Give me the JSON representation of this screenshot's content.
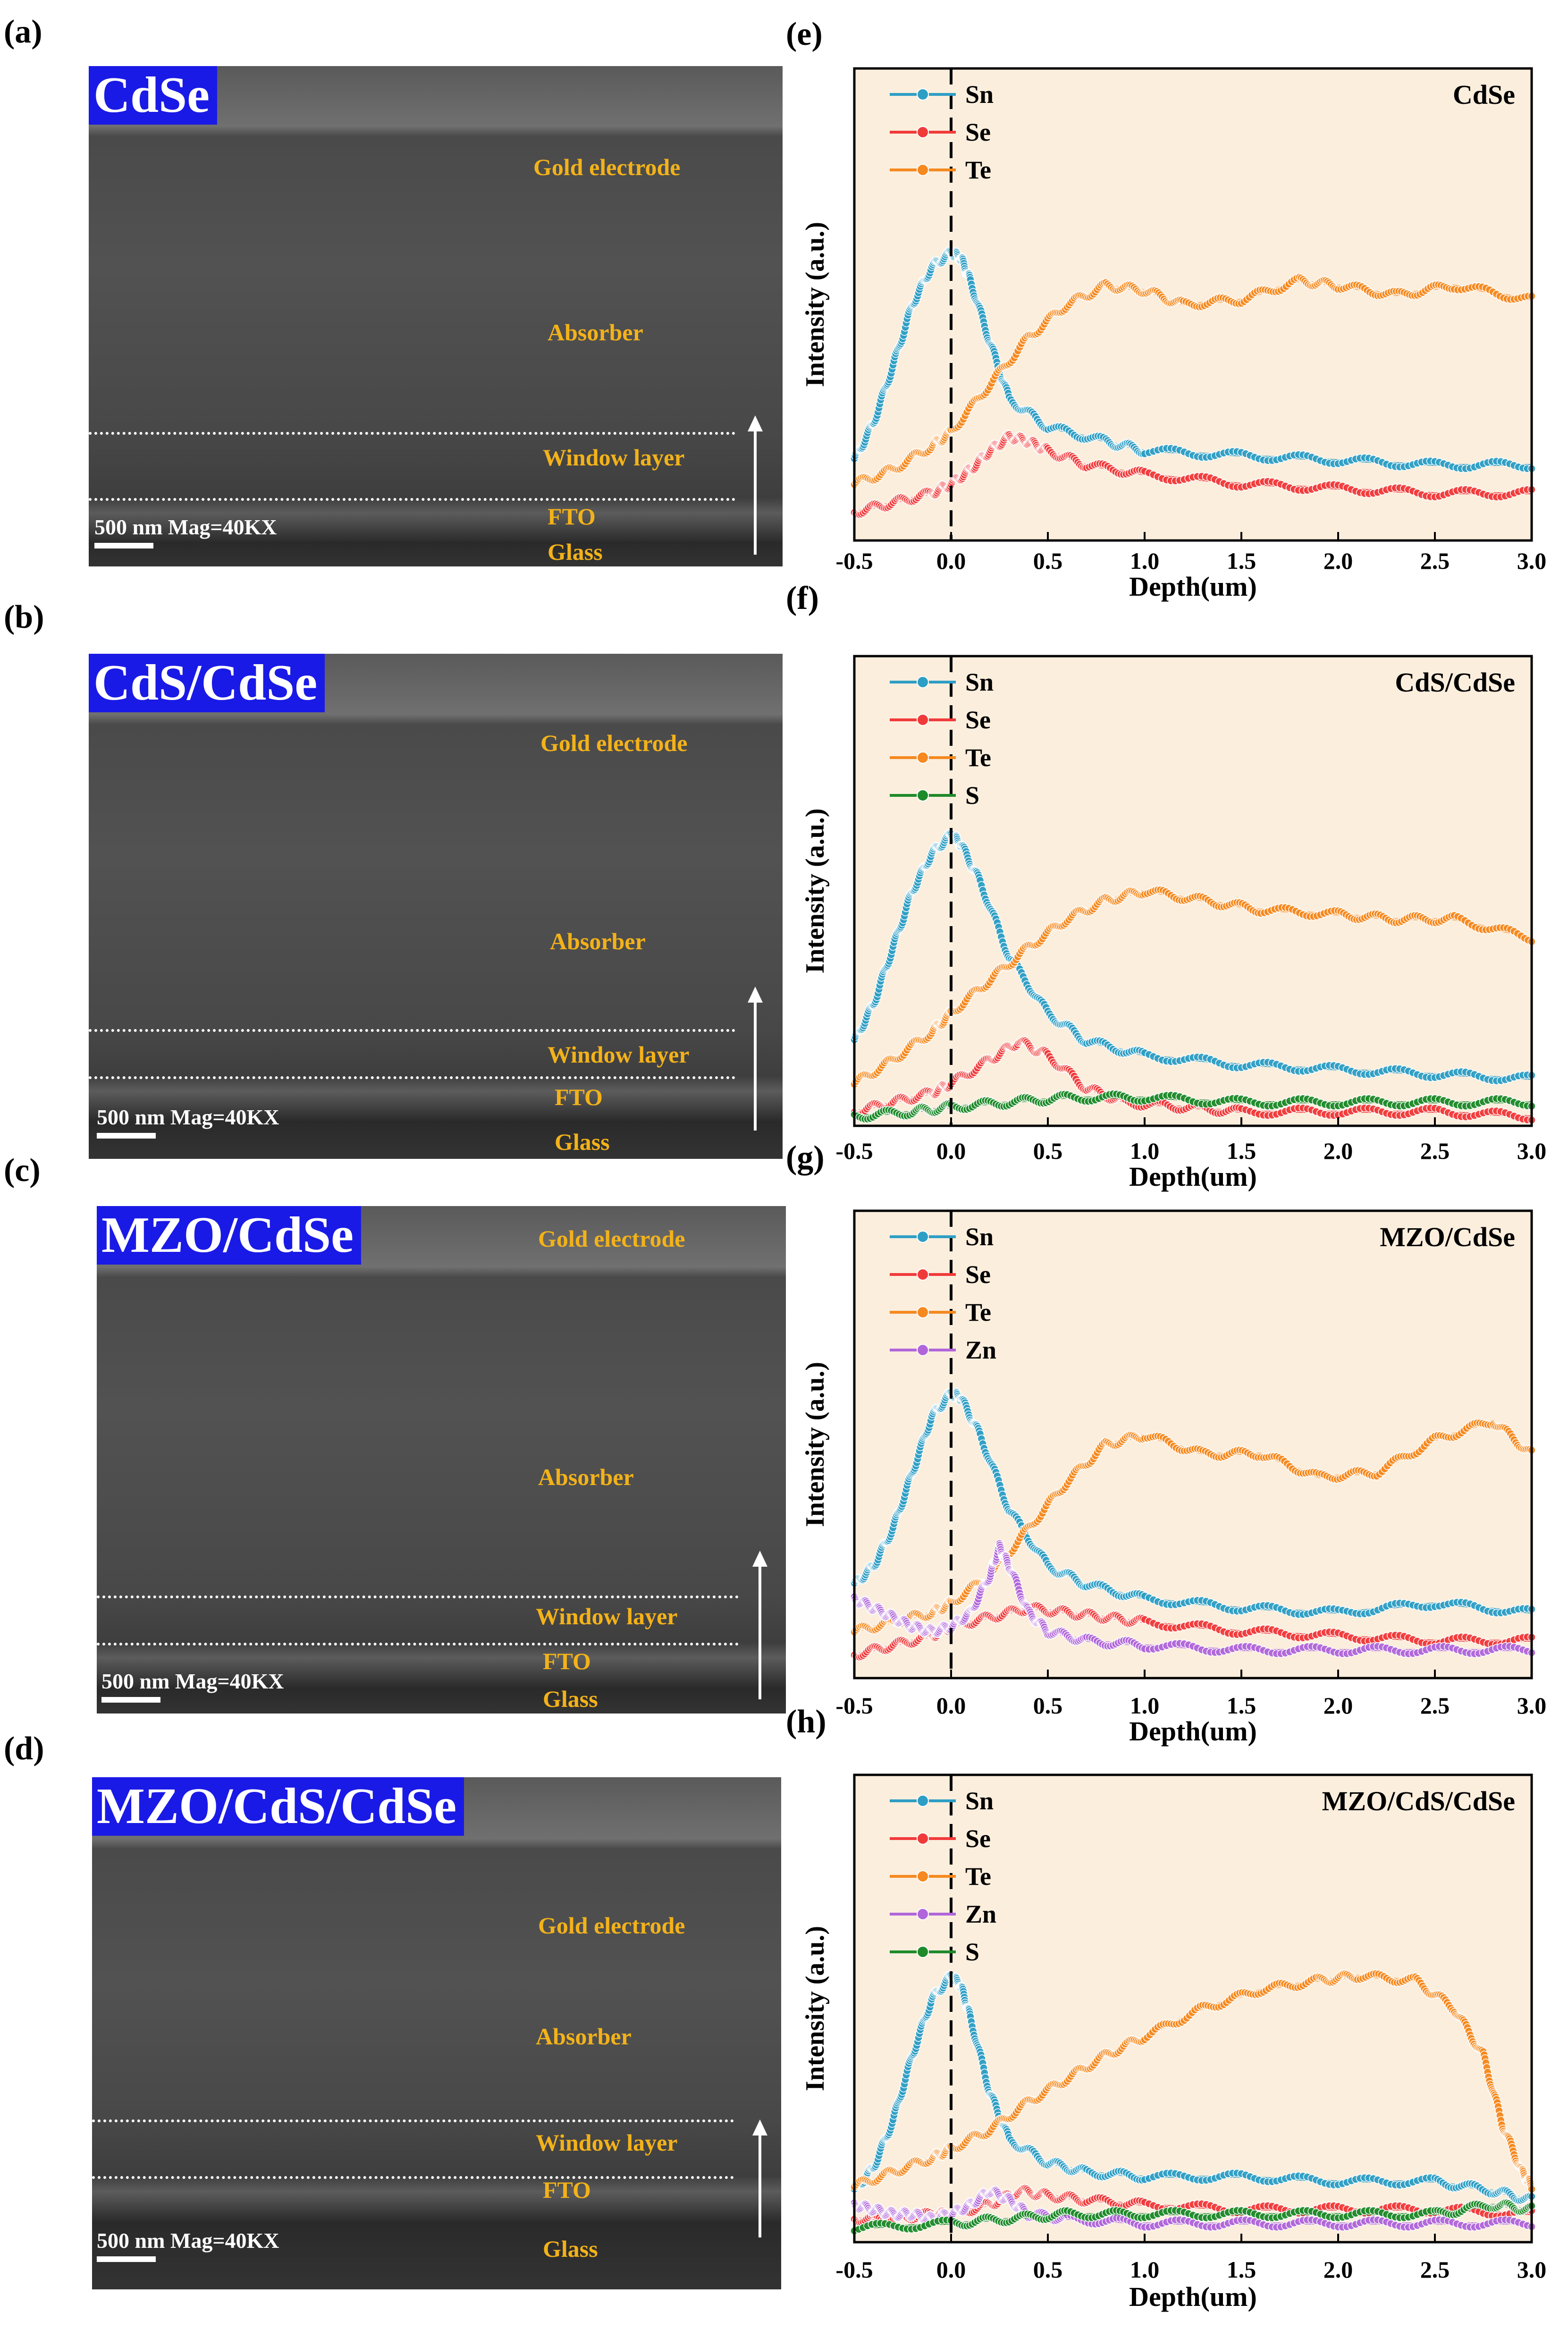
{
  "sem_panels": [
    {
      "letter": "(a)",
      "title": "CdSe",
      "layers": {
        "gold": "Gold electrode",
        "absorber": "Absorber",
        "window": "Window  layer",
        "fto": "FTO",
        "glass": "Glass"
      },
      "scale_text": "500 nm   Mag=40KX"
    },
    {
      "letter": "(b)",
      "title": "CdS/CdSe",
      "layers": {
        "gold": "Gold electrode",
        "absorber": "Absorber",
        "window": "Window  layer",
        "fto": "FTO",
        "glass": "Glass"
      },
      "scale_text": "500 nm  Mag=40KX"
    },
    {
      "letter": "(c)",
      "title": "MZO/CdSe",
      "layers": {
        "gold": "Gold electrode",
        "absorber": "Absorber",
        "window": "Window  layer",
        "fto": "FTO",
        "glass": "Glass"
      },
      "scale_text": "500 nm  Mag=40KX"
    },
    {
      "letter": "(d)",
      "title": "MZO/CdS/CdSe",
      "layers": {
        "gold": "Gold electrode",
        "absorber": "Absorber",
        "window": "Window  layer",
        "fto": "FTO",
        "glass": "Glass"
      },
      "scale_text": "500 nm  Mag=40KX"
    }
  ],
  "colors": {
    "Sn": "#2e9ec4",
    "Se": "#f03a3a",
    "Te": "#f5891f",
    "Zn": "#b066d9",
    "S": "#1f8a2a",
    "plot_bg": "#fbeedd"
  },
  "chart_data": [
    {
      "type": "scatter",
      "letter": "(e)",
      "title": "CdSe",
      "xlabel": "Depth(um)",
      "ylabel": "Intensity (a.u.)",
      "xlim": [
        -0.5,
        3.0
      ],
      "ylim": [
        0,
        100
      ],
      "xticks": [
        -0.5,
        0.0,
        0.5,
        1.0,
        1.5,
        2.0,
        2.5,
        3.0
      ],
      "xtick_labels": [
        "-0.5",
        "0.0",
        "0.5",
        "1.0",
        "1.5",
        "2.0",
        "2.5",
        "3.0"
      ],
      "vline_x": 0.0,
      "legend": [
        "Sn",
        "Se",
        "Te"
      ],
      "series": [
        {
          "name": "Sn",
          "x": [
            -0.5,
            -0.4,
            -0.3,
            -0.2,
            -0.1,
            0.0,
            0.05,
            0.1,
            0.2,
            0.3,
            0.5,
            0.8,
            1.0,
            1.5,
            2.0,
            2.5,
            3.0
          ],
          "y": [
            17,
            25,
            37,
            50,
            58,
            61,
            60,
            55,
            42,
            30,
            24,
            21,
            19,
            18,
            17,
            16,
            16
          ]
        },
        {
          "name": "Se",
          "x": [
            -0.5,
            -0.3,
            -0.1,
            0.0,
            0.1,
            0.2,
            0.3,
            0.4,
            0.5,
            0.7,
            1.0,
            1.5,
            2.0,
            2.5,
            3.0
          ],
          "y": [
            6,
            8,
            10,
            12,
            15,
            19,
            22,
            21,
            19,
            16,
            14,
            12,
            11,
            10,
            10
          ]
        },
        {
          "name": "Te",
          "x": [
            -0.5,
            -0.3,
            -0.1,
            0.0,
            0.2,
            0.4,
            0.6,
            0.8,
            1.0,
            1.2,
            1.5,
            1.8,
            2.0,
            2.3,
            2.6,
            3.0
          ],
          "y": [
            12,
            15,
            20,
            23,
            33,
            43,
            50,
            54,
            53,
            50,
            51,
            55,
            54,
            52,
            54,
            51
          ]
        }
      ]
    },
    {
      "type": "scatter",
      "letter": "(f)",
      "title": "CdS/CdSe",
      "xlabel": "Depth(um)",
      "ylabel": "Intensity (a.u.)",
      "xlim": [
        -0.5,
        3.0
      ],
      "ylim": [
        0,
        100
      ],
      "xticks": [
        -0.5,
        0.0,
        0.5,
        1.0,
        1.5,
        2.0,
        2.5,
        3.0
      ],
      "xtick_labels": [
        "-0.5",
        "0.0",
        "0.5",
        "1.0",
        "1.5",
        "2.0",
        "2.5",
        "3.0"
      ],
      "vline_x": 0.0,
      "legend": [
        "Sn",
        "Se",
        "Te",
        "S"
      ],
      "series": [
        {
          "name": "Sn",
          "x": [
            -0.5,
            -0.4,
            -0.3,
            -0.2,
            -0.1,
            0.0,
            0.05,
            0.15,
            0.3,
            0.5,
            0.7,
            1.0,
            1.5,
            2.0,
            2.5,
            3.0
          ],
          "y": [
            18,
            26,
            38,
            50,
            58,
            62,
            60,
            52,
            36,
            24,
            18,
            15,
            13,
            12,
            11,
            10
          ]
        },
        {
          "name": "Se",
          "x": [
            -0.5,
            -0.3,
            -0.1,
            0.0,
            0.2,
            0.35,
            0.5,
            0.7,
            0.9,
            1.2,
            1.5,
            2.0,
            2.5,
            3.0
          ],
          "y": [
            3,
            5,
            7,
            9,
            14,
            18,
            15,
            8,
            5,
            4,
            3,
            3,
            3,
            2
          ]
        },
        {
          "name": "Te",
          "x": [
            -0.5,
            -0.3,
            -0.1,
            0.0,
            0.2,
            0.4,
            0.6,
            0.8,
            1.0,
            1.3,
            1.6,
            2.0,
            2.3,
            2.6,
            3.0
          ],
          "y": [
            9,
            14,
            20,
            24,
            31,
            38,
            44,
            48,
            50,
            48,
            46,
            45,
            44,
            44,
            40
          ]
        },
        {
          "name": "S",
          "x": [
            -0.5,
            -0.2,
            0.0,
            0.3,
            0.6,
            1.0,
            1.5,
            2.0,
            2.5,
            3.0
          ],
          "y": [
            2,
            3,
            4,
            5,
            6,
            6,
            5,
            5,
            5,
            5
          ]
        }
      ]
    },
    {
      "type": "scatter",
      "letter": "(g)",
      "title": "MZO/CdSe",
      "xlabel": "Depth(um)",
      "ylabel": "Intensity (a.u.)",
      "xlim": [
        -0.5,
        3.0
      ],
      "ylim": [
        0,
        100
      ],
      "xticks": [
        -0.5,
        0.0,
        0.5,
        1.0,
        1.5,
        2.0,
        2.5,
        3.0
      ],
      "xtick_labels": [
        "-0.5",
        "0.0",
        "0.5",
        "1.0",
        "1.5",
        "2.0",
        "2.5",
        "3.0"
      ],
      "vline_x": 0.0,
      "legend": [
        "Sn",
        "Se",
        "Te",
        "Zn"
      ],
      "series": [
        {
          "name": "Sn",
          "x": [
            -0.5,
            -0.4,
            -0.3,
            -0.2,
            -0.1,
            0.0,
            0.05,
            0.15,
            0.3,
            0.5,
            0.7,
            1.0,
            1.5,
            2.0,
            2.5,
            3.0
          ],
          "y": [
            20,
            24,
            32,
            44,
            56,
            61,
            60,
            52,
            36,
            24,
            20,
            17,
            15,
            14,
            16,
            14
          ]
        },
        {
          "name": "Se",
          "x": [
            -0.5,
            -0.3,
            -0.1,
            0.0,
            0.2,
            0.4,
            0.6,
            0.8,
            1.0,
            1.5,
            2.0,
            2.5,
            3.0
          ],
          "y": [
            5,
            7,
            9,
            11,
            13,
            15,
            14,
            13,
            12,
            10,
            9,
            8,
            8
          ]
        },
        {
          "name": "Te",
          "x": [
            -0.5,
            -0.3,
            -0.1,
            0.0,
            0.2,
            0.4,
            0.6,
            0.8,
            1.0,
            1.3,
            1.6,
            1.9,
            2.2,
            2.5,
            2.8,
            3.0
          ],
          "y": [
            10,
            12,
            14,
            16,
            22,
            32,
            42,
            50,
            52,
            48,
            48,
            43,
            44,
            51,
            55,
            48
          ]
        },
        {
          "name": "Zn",
          "x": [
            -0.5,
            -0.4,
            -0.3,
            -0.2,
            -0.1,
            0.0,
            0.1,
            0.2,
            0.25,
            0.3,
            0.4,
            0.5,
            0.7,
            1.0,
            1.5,
            2.0,
            2.5,
            3.0
          ],
          "y": [
            17,
            15,
            13,
            11,
            10,
            11,
            14,
            22,
            28,
            24,
            14,
            10,
            8,
            7,
            6,
            6,
            6,
            6
          ]
        }
      ]
    },
    {
      "type": "scatter",
      "letter": "(h)",
      "title": "MZO/CdS/CdSe",
      "xlabel": "Depth(um)",
      "ylabel": "Intensity (a.u.)",
      "xlim": [
        -0.5,
        3.0
      ],
      "ylim": [
        0,
        100
      ],
      "xticks": [
        -0.5,
        0.0,
        0.5,
        1.0,
        1.5,
        2.0,
        2.5,
        3.0
      ],
      "xtick_labels": [
        "-0.5",
        "0.0",
        "0.5",
        "1.0",
        "1.5",
        "2.0",
        "2.5",
        "3.0"
      ],
      "vline_x": 0.0,
      "legend": [
        "Sn",
        "Se",
        "Te",
        "Zn",
        "S"
      ],
      "series": [
        {
          "name": "Sn",
          "x": [
            -0.5,
            -0.4,
            -0.3,
            -0.2,
            -0.1,
            0.0,
            0.05,
            0.1,
            0.2,
            0.3,
            0.5,
            0.7,
            1.0,
            1.5,
            2.0,
            2.5,
            2.8,
            3.0
          ],
          "y": [
            11,
            16,
            26,
            40,
            52,
            57,
            55,
            48,
            32,
            22,
            17,
            15,
            14,
            14,
            13,
            13,
            11,
            9
          ]
        },
        {
          "name": "Se",
          "x": [
            -0.5,
            -0.3,
            -0.1,
            0.0,
            0.2,
            0.35,
            0.5,
            0.7,
            1.0,
            1.5,
            2.0,
            2.5,
            3.0
          ],
          "y": [
            5,
            5,
            6,
            6,
            8,
            11,
            10,
            9,
            8,
            7,
            7,
            7,
            6
          ]
        },
        {
          "name": "Te",
          "x": [
            -0.5,
            -0.3,
            -0.1,
            0.0,
            0.2,
            0.4,
            0.6,
            0.8,
            1.0,
            1.3,
            1.6,
            1.9,
            2.1,
            2.4,
            2.6,
            2.75,
            2.85,
            2.95,
            3.0
          ],
          "y": [
            12,
            15,
            18,
            20,
            24,
            30,
            35,
            40,
            44,
            50,
            54,
            56,
            57,
            56,
            50,
            40,
            25,
            15,
            12
          ]
        },
        {
          "name": "Zn",
          "x": [
            -0.5,
            -0.4,
            -0.3,
            -0.2,
            -0.1,
            0.0,
            0.1,
            0.2,
            0.3,
            0.4,
            0.6,
            1.0,
            1.5,
            2.0,
            2.5,
            3.0
          ],
          "y": [
            8,
            7,
            6,
            6,
            5,
            6,
            8,
            11,
            9,
            6,
            5,
            4,
            4,
            4,
            4,
            4
          ]
        },
        {
          "name": "S",
          "x": [
            -0.5,
            0.0,
            0.3,
            0.6,
            1.0,
            1.5,
            2.0,
            2.5,
            2.8,
            3.0
          ],
          "y": [
            3,
            4,
            5,
            6,
            6,
            6,
            6,
            6,
            8,
            7
          ]
        }
      ]
    }
  ]
}
